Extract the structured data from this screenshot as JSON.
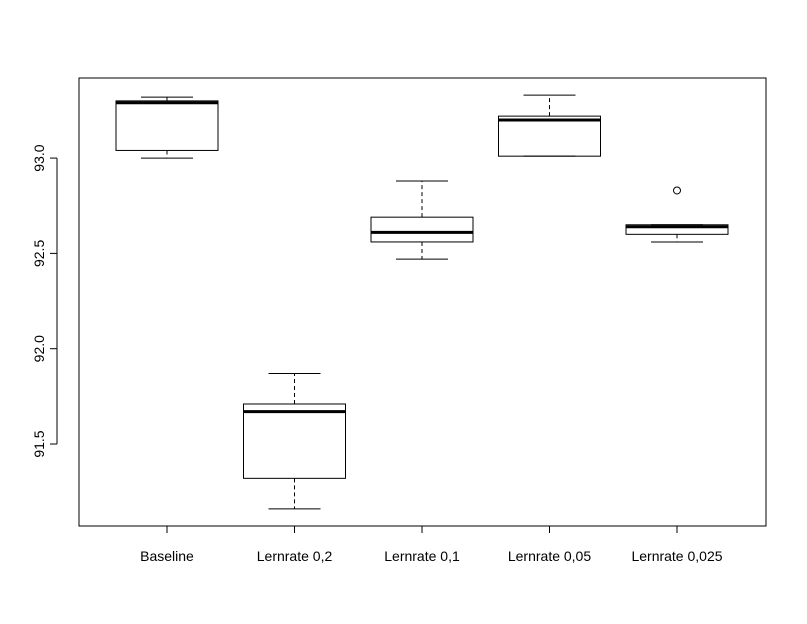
{
  "chart_data": {
    "type": "boxplot",
    "title": "",
    "xlabel": "",
    "ylabel": "",
    "ylim": [
      91.07,
      93.42
    ],
    "yticks": [
      "91.5",
      "92.0",
      "92.5",
      "93.0"
    ],
    "categories": [
      "Baseline",
      "Lernrate 0,2",
      "Lernrate 0,1",
      "Lernrate 0,05",
      "Lernrate 0,025"
    ],
    "boxes": [
      {
        "whisker_low": 93.0,
        "q1": 93.04,
        "median": 93.29,
        "q3": 93.3,
        "whisker_high": 93.32,
        "outliers": []
      },
      {
        "whisker_low": 91.16,
        "q1": 91.32,
        "median": 91.67,
        "q3": 91.71,
        "whisker_high": 91.87,
        "outliers": []
      },
      {
        "whisker_low": 92.47,
        "q1": 92.56,
        "median": 92.61,
        "q3": 92.69,
        "whisker_high": 92.88,
        "outliers": []
      },
      {
        "whisker_low": 93.01,
        "q1": 93.01,
        "median": 93.2,
        "q3": 93.22,
        "whisker_high": 93.33,
        "outliers": []
      },
      {
        "whisker_low": 92.56,
        "q1": 92.6,
        "median": 92.64,
        "q3": 92.65,
        "whisker_high": 92.65,
        "outliers": [
          92.83
        ]
      }
    ],
    "grid": false,
    "legend": "none"
  }
}
